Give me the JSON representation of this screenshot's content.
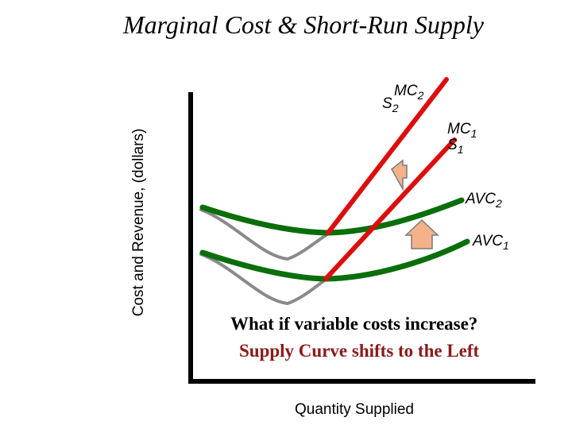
{
  "title": "Marginal Cost & Short-Run Supply",
  "y_axis_label": "Cost and Revenue, (dollars)",
  "x_axis_label": "Quantity Supplied",
  "curves": {
    "mc2": {
      "main": "MC",
      "sub": "2"
    },
    "s2": {
      "main": "S",
      "sub": "2"
    },
    "mc1": {
      "main": "MC",
      "sub": "1"
    },
    "s1": {
      "main": "S",
      "sub": "1"
    },
    "avc2": {
      "main": "AVC",
      "sub": "2"
    },
    "avc1": {
      "main": "AVC",
      "sub": "1"
    }
  },
  "question": "What if variable costs increase?",
  "answer": "Supply Curve shifts to the Left",
  "colors": {
    "mc": "#dd0d0d",
    "avc": "#0a6e0a",
    "old_curve": "#8a8a8a",
    "arrow_fill": "#f3b28a",
    "answer_text": "#8b1a1a",
    "axis": "#000000"
  }
}
